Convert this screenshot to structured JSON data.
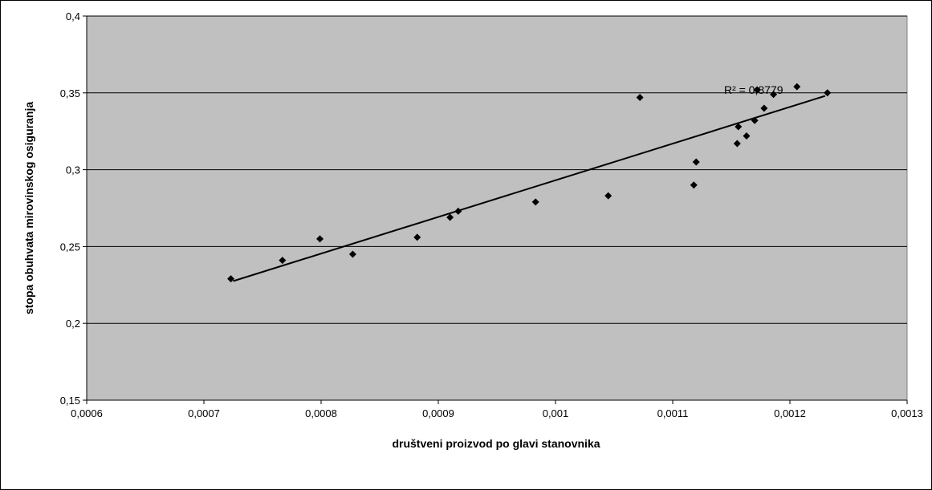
{
  "chart_data": {
    "type": "scatter",
    "title": "",
    "xlabel": "društveni proizvod po glavi stanovnika",
    "ylabel": "stopa obuhvata mirovinskog osiguranja",
    "xlim": [
      0.0006,
      0.0013
    ],
    "ylim": [
      0.15,
      0.4
    ],
    "x_ticks": [
      0.0006,
      0.0007,
      0.0008,
      0.0009,
      0.001,
      0.0011,
      0.0012,
      0.0013
    ],
    "x_tick_labels": [
      "0,0006",
      "0,0007",
      "0,0008",
      "0,0009",
      "0,001",
      "0,0011",
      "0,0012",
      "0,0013"
    ],
    "y_ticks": [
      0.15,
      0.2,
      0.25,
      0.3,
      0.35,
      0.4
    ],
    "y_tick_labels": [
      "0,15",
      "0,2",
      "0,25",
      "0,3",
      "0,35",
      "0,4"
    ],
    "grid": "horizontal",
    "legend": "none",
    "plot_background": "#c0c0c0",
    "marker_color": "#000000",
    "points": [
      {
        "x": 0.000723,
        "y": 0.229
      },
      {
        "x": 0.000767,
        "y": 0.241
      },
      {
        "x": 0.000799,
        "y": 0.255
      },
      {
        "x": 0.000827,
        "y": 0.245
      },
      {
        "x": 0.000882,
        "y": 0.256
      },
      {
        "x": 0.00091,
        "y": 0.269
      },
      {
        "x": 0.000917,
        "y": 0.273
      },
      {
        "x": 0.000983,
        "y": 0.279
      },
      {
        "x": 0.001045,
        "y": 0.283
      },
      {
        "x": 0.001072,
        "y": 0.347
      },
      {
        "x": 0.001118,
        "y": 0.29
      },
      {
        "x": 0.00112,
        "y": 0.305
      },
      {
        "x": 0.001155,
        "y": 0.317
      },
      {
        "x": 0.001156,
        "y": 0.328
      },
      {
        "x": 0.001163,
        "y": 0.322
      },
      {
        "x": 0.00117,
        "y": 0.332
      },
      {
        "x": 0.001172,
        "y": 0.352
      },
      {
        "x": 0.001178,
        "y": 0.34
      },
      {
        "x": 0.001186,
        "y": 0.349
      },
      {
        "x": 0.001206,
        "y": 0.354
      },
      {
        "x": 0.001232,
        "y": 0.35
      }
    ],
    "trendline": {
      "x1": 0.000725,
      "y1": 0.2275,
      "x2": 0.00123,
      "y2": 0.348
    },
    "annotation": "R² = 0,8779"
  }
}
